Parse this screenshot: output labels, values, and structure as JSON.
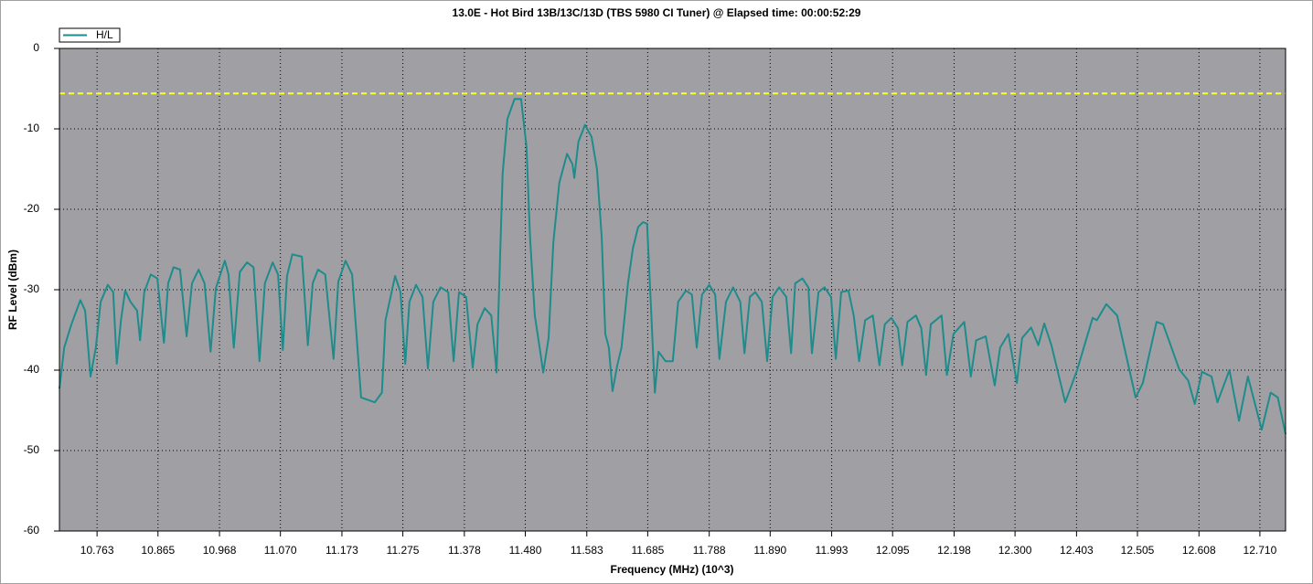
{
  "chart_data": {
    "type": "line",
    "title": "13.0E - Hot Bird 13B/13C/13D (TBS 5980 CI Tuner) @ Elapsed time: 00:00:52:29",
    "x_label": "Frequency (MHz) (10^3)",
    "y_label": "RF Level (dBm)",
    "x": [
      10.7,
      10.708,
      10.72,
      10.735,
      10.743,
      10.752,
      10.761,
      10.769,
      10.781,
      10.79,
      10.796,
      10.803,
      10.81,
      10.819,
      10.83,
      10.835,
      10.842,
      10.853,
      10.864,
      10.875,
      10.882,
      10.891,
      10.902,
      10.913,
      10.922,
      10.933,
      10.943,
      10.953,
      10.962,
      10.977,
      10.983,
      10.992,
      11.002,
      11.014,
      11.025,
      11.035,
      11.044,
      11.057,
      11.066,
      11.074,
      11.081,
      11.09,
      11.106,
      11.116,
      11.124,
      11.133,
      11.145,
      11.159,
      11.167,
      11.179,
      11.19,
      11.205,
      11.228,
      11.24,
      11.246,
      11.262,
      11.271,
      11.279,
      11.286,
      11.297,
      11.308,
      11.317,
      11.326,
      11.338,
      11.351,
      11.36,
      11.369,
      11.381,
      11.392,
      11.4,
      11.412,
      11.423,
      11.432,
      11.442,
      11.45,
      11.462,
      11.473,
      11.482,
      11.488,
      11.496,
      11.504,
      11.51,
      11.519,
      11.527,
      11.537,
      11.55,
      11.559,
      11.562,
      11.569,
      11.58,
      11.591,
      11.6,
      11.608,
      11.614,
      11.62,
      11.626,
      11.634,
      11.641,
      11.652,
      11.66,
      11.669,
      11.677,
      11.684,
      11.69,
      11.697,
      11.703,
      11.715,
      11.727,
      11.736,
      11.749,
      11.759,
      11.767,
      11.776,
      11.788,
      11.798,
      11.805,
      11.816,
      11.828,
      11.84,
      11.847,
      11.856,
      11.865,
      11.876,
      11.885,
      11.894,
      11.905,
      11.917,
      11.925,
      11.932,
      11.944,
      11.954,
      11.96,
      11.971,
      11.981,
      11.992,
      12.0,
      12.009,
      12.021,
      12.03,
      12.039,
      12.049,
      12.062,
      12.073,
      12.082,
      12.093,
      12.104,
      12.111,
      12.12,
      12.134,
      12.143,
      12.151,
      12.159,
      12.177,
      12.186,
      12.197,
      12.215,
      12.226,
      12.235,
      12.251,
      12.266,
      12.275,
      12.289,
      12.303,
      12.312,
      12.327,
      12.339,
      12.349,
      12.361,
      12.384,
      12.404,
      12.43,
      12.437,
      12.453,
      12.471,
      12.502,
      12.514,
      12.537,
      12.548,
      12.575,
      12.59,
      12.601,
      12.613,
      12.629,
      12.639,
      12.659,
      12.675,
      12.69,
      12.713,
      12.728,
      12.74,
      12.753
    ],
    "series": [
      {
        "name": "H/L",
        "color": "#1e8c8c",
        "values": [
          -42.3,
          -37.2,
          -34.3,
          -31.3,
          -32.6,
          -40.8,
          -37.2,
          -31.5,
          -29.4,
          -30.3,
          -39.2,
          -33.8,
          -30.1,
          -31.5,
          -32.6,
          -36.3,
          -30.3,
          -28.1,
          -28.6,
          -36.6,
          -29.2,
          -27.2,
          -27.5,
          -35.8,
          -29.2,
          -27.5,
          -29.2,
          -37.7,
          -29.8,
          -26.4,
          -28.1,
          -37.2,
          -27.8,
          -26.6,
          -27.2,
          -38.9,
          -29.2,
          -26.6,
          -28.1,
          -37.5,
          -28.3,
          -25.6,
          -25.9,
          -36.9,
          -29.2,
          -27.5,
          -28.1,
          -38.6,
          -29.0,
          -26.4,
          -28.1,
          -43.4,
          -44.0,
          -42.8,
          -33.8,
          -28.3,
          -30.3,
          -39.2,
          -31.5,
          -29.4,
          -30.9,
          -39.8,
          -31.5,
          -29.7,
          -30.3,
          -38.9,
          -30.3,
          -30.9,
          -39.7,
          -34.3,
          -32.3,
          -33.2,
          -40.3,
          -15.6,
          -8.8,
          -6.3,
          -6.3,
          -12.2,
          -23.5,
          -33.2,
          -37.2,
          -40.3,
          -36.0,
          -24.1,
          -16.7,
          -13.1,
          -14.4,
          -16.1,
          -11.6,
          -9.5,
          -11.0,
          -15.0,
          -23.5,
          -35.5,
          -37.2,
          -42.6,
          -39.4,
          -37.2,
          -29.2,
          -24.9,
          -22.2,
          -21.6,
          -21.8,
          -31.5,
          -42.8,
          -37.7,
          -38.9,
          -38.9,
          -31.5,
          -30.1,
          -30.6,
          -37.2,
          -30.6,
          -29.4,
          -30.6,
          -38.6,
          -31.5,
          -29.7,
          -31.5,
          -37.9,
          -30.9,
          -30.3,
          -31.5,
          -38.9,
          -30.9,
          -29.7,
          -30.9,
          -37.9,
          -29.2,
          -28.6,
          -29.7,
          -37.9,
          -30.3,
          -29.7,
          -30.9,
          -38.6,
          -30.3,
          -30.1,
          -33.2,
          -38.9,
          -33.8,
          -33.2,
          -39.4,
          -34.3,
          -33.5,
          -34.8,
          -39.4,
          -34.0,
          -33.2,
          -34.8,
          -40.6,
          -34.3,
          -33.2,
          -40.6,
          -35.5,
          -34.0,
          -40.8,
          -36.3,
          -35.8,
          -41.9,
          -37.2,
          -35.5,
          -41.6,
          -36.0,
          -34.7,
          -36.9,
          -34.2,
          -36.9,
          -44.0,
          -40.0,
          -33.5,
          -33.8,
          -31.8,
          -33.2,
          -43.4,
          -41.6,
          -34.0,
          -34.3,
          -39.9,
          -41.3,
          -44.2,
          -40.2,
          -40.8,
          -44.0,
          -40.0,
          -46.3,
          -40.8,
          -47.4,
          -42.8,
          -43.4,
          -47.95
        ]
      }
    ],
    "xlim": [
      10.7,
      12.753
    ],
    "ylim": [
      -60,
      0
    ],
    "xticks": [
      10.763,
      10.865,
      10.968,
      {
        "value": 11.07,
        "label": "11.070"
      },
      11.173,
      11.275,
      11.378,
      {
        "value": 11.48,
        "label": "11.480"
      },
      11.583,
      11.685,
      11.788,
      {
        "value": 11.89,
        "label": "11.890"
      },
      11.993,
      12.095,
      12.198,
      {
        "value": 12.3,
        "label": "12.300"
      },
      12.403,
      12.505,
      12.608,
      {
        "value": 12.71,
        "label": "12.710"
      }
    ],
    "yticks": [
      0,
      -10,
      -20,
      -30,
      -40,
      -50,
      -60
    ],
    "grid": true,
    "legend": "top-left",
    "plot_background": "#a0a0a4",
    "reference_line": {
      "value": -5.6,
      "color": "#ffff33",
      "style": "dashed"
    }
  }
}
